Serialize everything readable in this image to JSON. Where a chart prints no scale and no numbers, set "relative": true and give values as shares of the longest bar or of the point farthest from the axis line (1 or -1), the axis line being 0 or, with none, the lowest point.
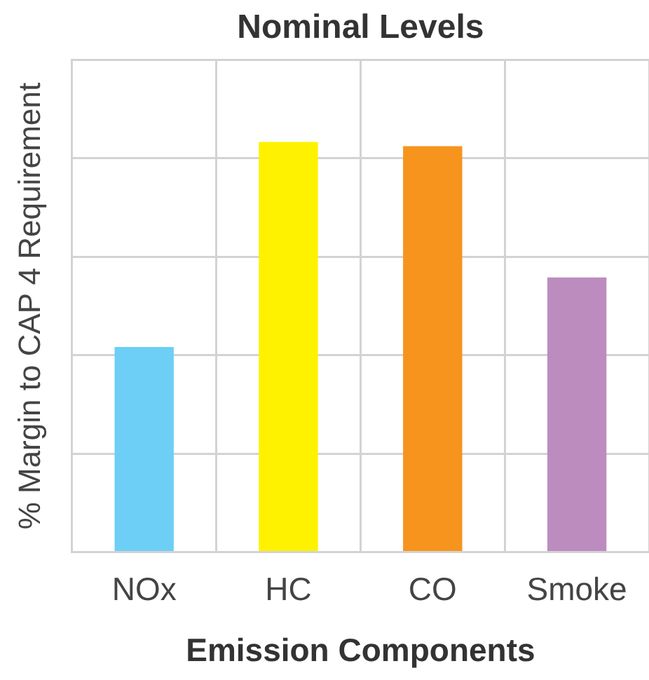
{
  "chart_data": {
    "type": "bar",
    "title": "Nominal Levels",
    "xlabel": "Emission Components",
    "ylabel": "% Margin to CAP 4 Requirement",
    "categories": [
      "NOx",
      "HC",
      "CO",
      "Smoke"
    ],
    "values": [
      0.5,
      1,
      0.99,
      0.67
    ],
    "colors": [
      "#6dcff6",
      "#fff200",
      "#f7941d",
      "#bc8cbf"
    ],
    "relative": true,
    "grid": true,
    "tick_labels": "x"
  }
}
